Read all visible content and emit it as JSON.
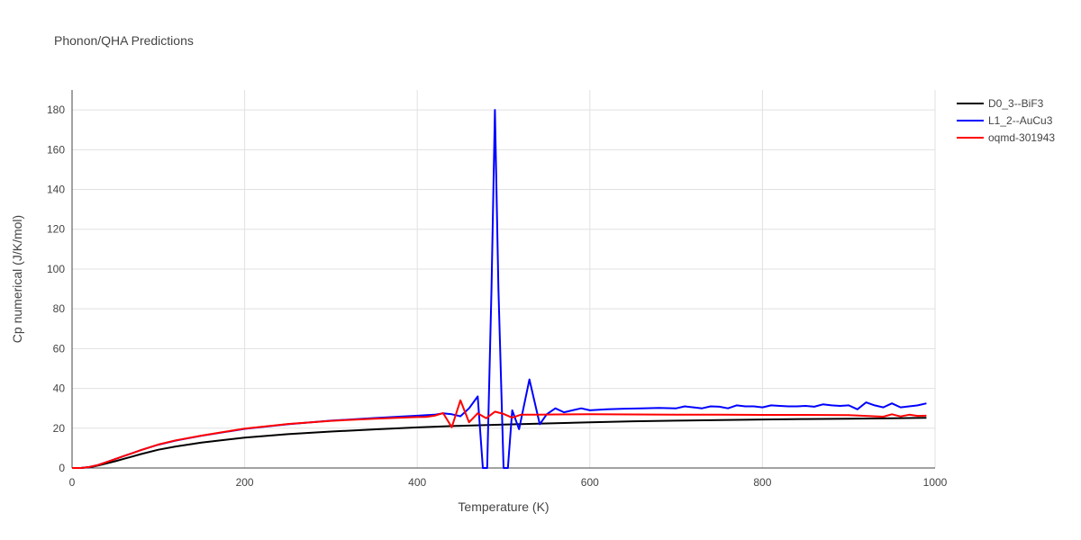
{
  "chart_data": {
    "type": "line",
    "title": "Phonon/QHA Predictions",
    "xlabel": "Temperature (K)",
    "ylabel": "Cp numerical (J/K/mol)",
    "xlim": [
      0,
      1000
    ],
    "ylim": [
      0,
      190
    ],
    "xticks": [
      0,
      200,
      400,
      600,
      800,
      1000
    ],
    "yticks": [
      0,
      20,
      40,
      60,
      80,
      100,
      120,
      140,
      160,
      180
    ],
    "grid": true,
    "legend_position": "top-right",
    "series": [
      {
        "name": "D0_3--BiF3",
        "color": "#000000",
        "x": [
          0,
          10,
          20,
          30,
          40,
          50,
          60,
          70,
          80,
          100,
          120,
          150,
          200,
          250,
          300,
          350,
          400,
          450,
          500,
          550,
          600,
          650,
          700,
          750,
          800,
          850,
          900,
          950,
          990
        ],
        "y": [
          0,
          0,
          0.3,
          1.2,
          2.3,
          3.4,
          4.6,
          5.8,
          7.0,
          9.2,
          10.8,
          12.8,
          15.3,
          17.0,
          18.3,
          19.4,
          20.4,
          21.2,
          21.8,
          22.4,
          23.0,
          23.5,
          23.8,
          24.1,
          24.4,
          24.6,
          24.8,
          25.0,
          25.2
        ]
      },
      {
        "name": "L1_2--AuCu3",
        "color": "#0000ff",
        "x": [
          0,
          10,
          20,
          30,
          40,
          50,
          60,
          70,
          80,
          100,
          120,
          150,
          200,
          250,
          300,
          350,
          400,
          420,
          430,
          440,
          450,
          460,
          470,
          476,
          481,
          486,
          490,
          494,
          500,
          505,
          510,
          518,
          530,
          542,
          550,
          560,
          570,
          580,
          590,
          600,
          620,
          640,
          660,
          680,
          700,
          710,
          720,
          730,
          740,
          750,
          760,
          770,
          780,
          790,
          800,
          810,
          820,
          830,
          840,
          850,
          860,
          870,
          880,
          890,
          900,
          910,
          920,
          930,
          940,
          950,
          960,
          970,
          980,
          990
        ],
        "y": [
          0,
          0,
          0.5,
          1.5,
          3.0,
          4.5,
          6.0,
          7.5,
          9.0,
          11.7,
          13.8,
          16.2,
          19.7,
          22.0,
          23.8,
          25.1,
          26.3,
          26.8,
          27.5,
          27.0,
          26.0,
          30.0,
          36.0,
          0,
          0,
          90.0,
          180.0,
          90.0,
          0,
          0,
          29.0,
          19.5,
          44.5,
          22.0,
          27.0,
          30.0,
          28.0,
          29.0,
          30.0,
          29.0,
          29.5,
          29.8,
          30.0,
          30.2,
          30.0,
          31.0,
          30.5,
          30.0,
          31.0,
          30.8,
          30.0,
          31.5,
          31.0,
          31.0,
          30.5,
          31.5,
          31.2,
          31.0,
          31.0,
          31.2,
          30.8,
          32.0,
          31.5,
          31.2,
          31.5,
          29.5,
          33.0,
          31.5,
          30.5,
          32.5,
          30.5,
          31.0,
          31.5,
          32.5
        ]
      },
      {
        "name": "oqmd-301943",
        "color": "#ff0000",
        "x": [
          0,
          10,
          20,
          30,
          40,
          50,
          60,
          70,
          80,
          100,
          120,
          150,
          200,
          250,
          300,
          350,
          400,
          410,
          420,
          430,
          440,
          450,
          460,
          470,
          480,
          490,
          500,
          510,
          520,
          540,
          560,
          600,
          650,
          700,
          750,
          800,
          850,
          900,
          940,
          950,
          960,
          970,
          980,
          990
        ],
        "y": [
          0,
          0,
          0.5,
          1.5,
          3.0,
          4.5,
          6.0,
          7.5,
          9.0,
          11.8,
          13.9,
          16.3,
          19.8,
          22.1,
          23.7,
          24.8,
          25.6,
          25.7,
          26.3,
          27.6,
          20.5,
          34.0,
          23.0,
          27.5,
          25.0,
          28.3,
          27.2,
          25.3,
          26.8,
          26.8,
          26.9,
          27.0,
          26.9,
          26.8,
          26.8,
          26.7,
          26.7,
          26.6,
          25.8,
          27.0,
          25.9,
          26.8,
          26.2,
          26.3
        ]
      }
    ]
  }
}
